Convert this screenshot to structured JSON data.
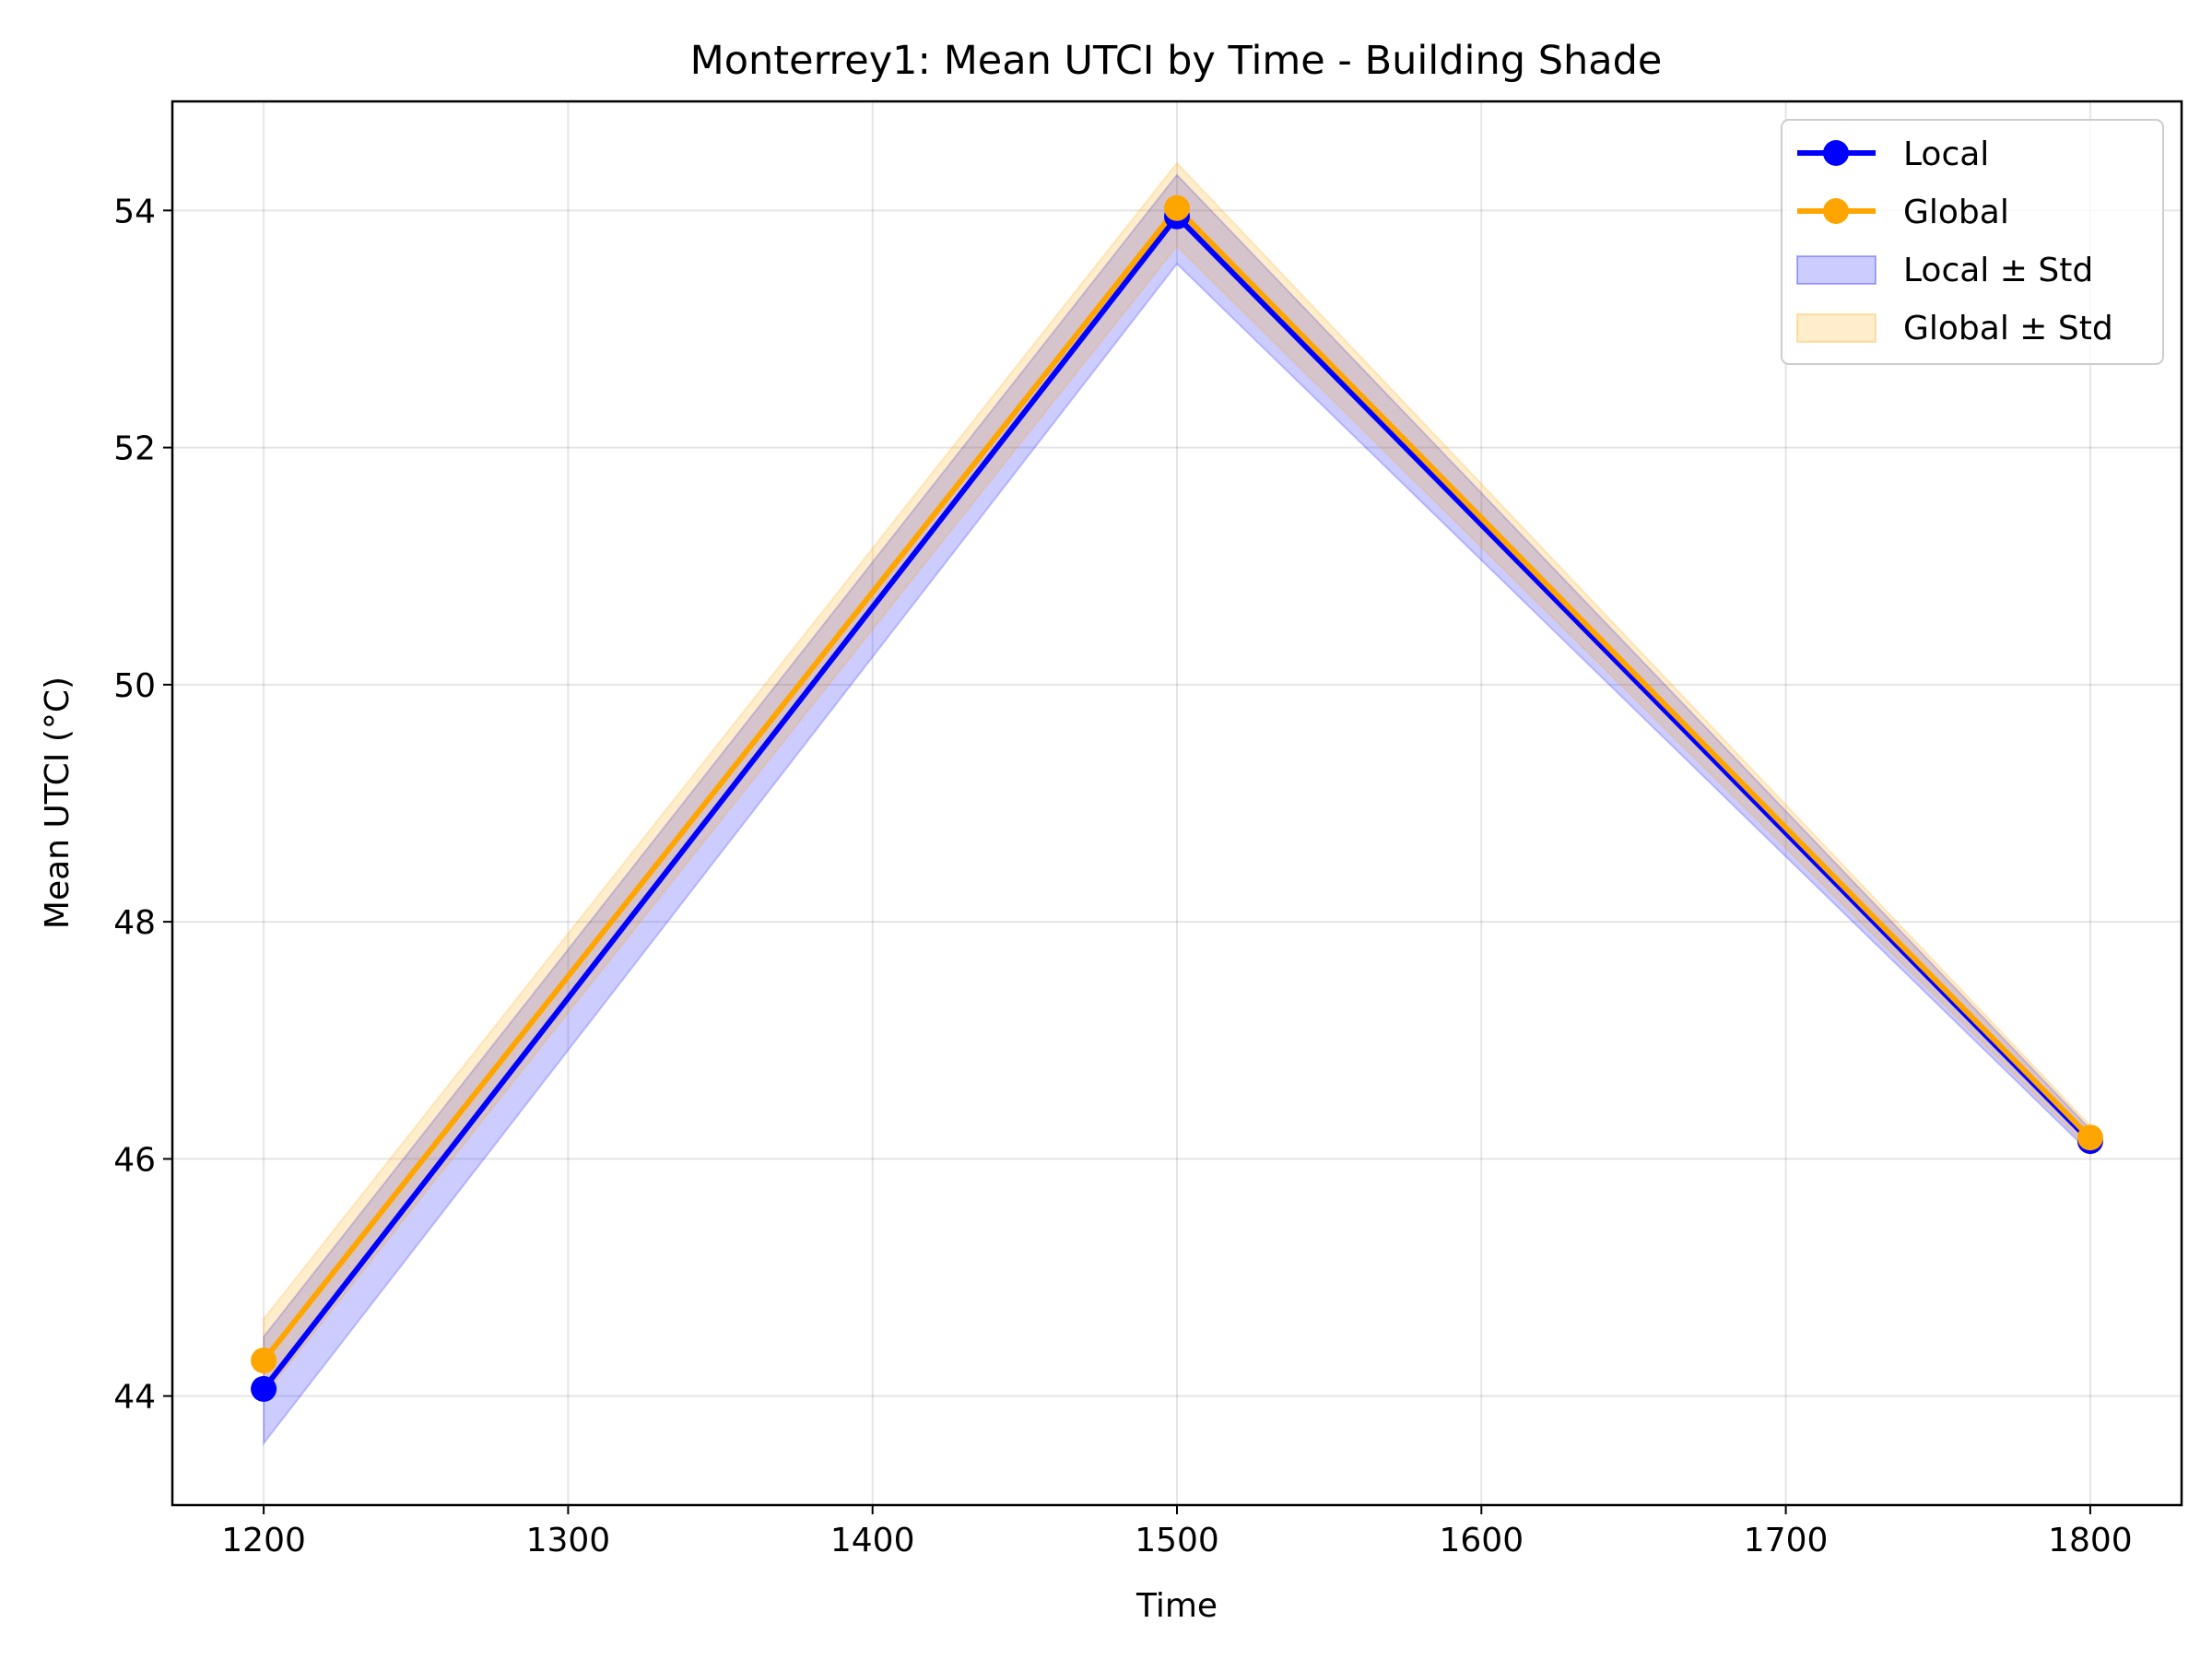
{
  "chart_data": {
    "type": "line",
    "title": "Monterrey1: Mean UTCI by Time - Building Shade",
    "xlabel": "Time",
    "ylabel": "Mean UTCI (°C)",
    "xlim": [
      1170,
      1830
    ],
    "ylim": [
      43.08,
      54.92
    ],
    "xticks": [
      1200,
      1300,
      1400,
      1500,
      1600,
      1700,
      1800
    ],
    "yticks": [
      44,
      46,
      48,
      50,
      52,
      54
    ],
    "grid": true,
    "legend_position": "top-right",
    "x": [
      1200,
      1500,
      1800
    ],
    "series": [
      {
        "name": "Local",
        "color": "#0000ff",
        "values": [
          44.06,
          53.95,
          46.15
        ],
        "band_lower": [
          43.6,
          53.55,
          46.05
        ],
        "band_upper": [
          44.5,
          54.3,
          46.25
        ]
      },
      {
        "name": "Global",
        "color": "#ffa500",
        "values": [
          44.3,
          54.02,
          46.18
        ],
        "band_lower": [
          44.0,
          53.7,
          46.08
        ],
        "band_upper": [
          44.65,
          54.4,
          46.28
        ]
      }
    ],
    "bands": [
      {
        "name": "Local ± Std",
        "color": "#0000ff",
        "opacity": 0.2
      },
      {
        "name": "Global ± Std",
        "color": "#ffa500",
        "opacity": 0.2
      }
    ]
  }
}
